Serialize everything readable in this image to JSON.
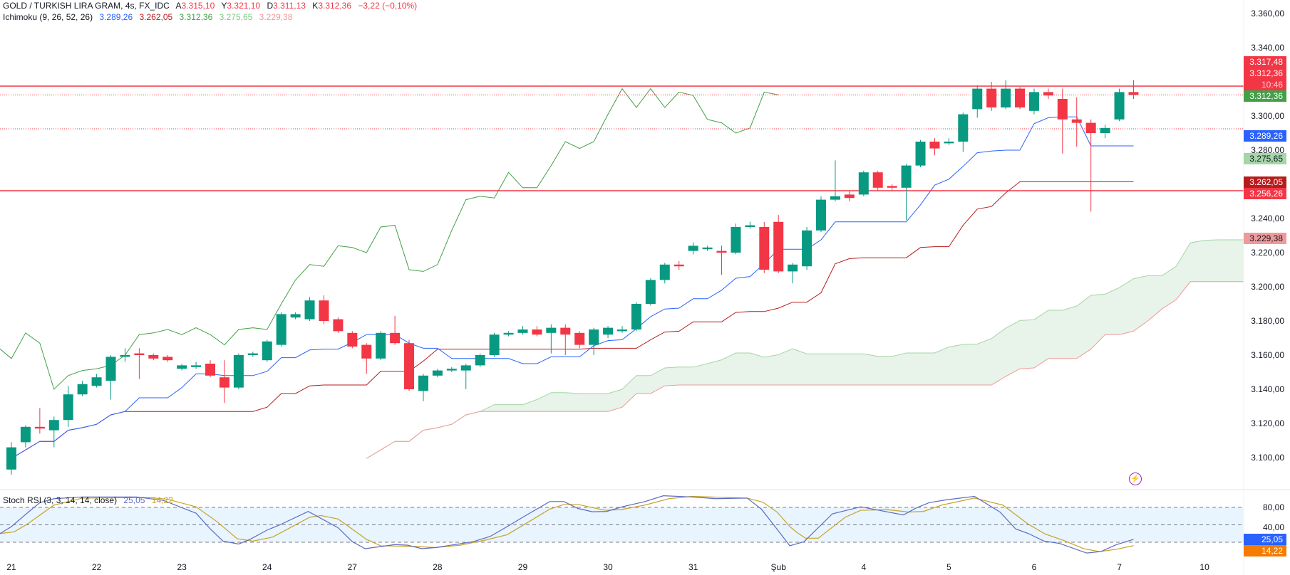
{
  "header": {
    "symbol": "GOLD / TURKISH LIRA GRAM, 4s, FX_IDC",
    "open_label": "A",
    "open": "3.315,10",
    "high_label": "Y",
    "high": "3.321,10",
    "low_label": "D",
    "low": "3.311,13",
    "close_label": "K",
    "close": "3.312,36",
    "change": "−3,22 (−0,10%)"
  },
  "ichimoku": {
    "label": "Ichimoku (9, 26, 52, 26)",
    "conversion": "3.289,26",
    "base": "3.262,05",
    "lagging": "3.312,36",
    "lead1": "3.275,65",
    "lead2": "3.229,38"
  },
  "stoch": {
    "label": "Stoch RSI (3, 3, 14, 14, close)",
    "k": "25,05",
    "d": "14,22",
    "axis": [
      "80,00",
      "40,00"
    ]
  },
  "price_axis": [
    "3.360,00",
    "3.340,00",
    "3.300,00",
    "3.280,00",
    "3.240,00",
    "3.220,00",
    "3.200,00",
    "3.180,00",
    "3.160,00",
    "3.140,00",
    "3.120,00",
    "3.100,00"
  ],
  "price_tags": {
    "line_high": "3.317,48",
    "last": "3.312,36",
    "countdown": "10:46",
    "lagging": "3.312,36",
    "conversion": "3.289,26",
    "lead1": "3.275,65",
    "base": "3.262,05",
    "line_low": "3.256,26",
    "lead2": "3.229,38"
  },
  "time_axis": [
    "21",
    "22",
    "23",
    "24",
    "27",
    "28",
    "29",
    "30",
    "31",
    "Şub",
    "4",
    "5",
    "6",
    "7",
    "10"
  ],
  "colors": {
    "up": "#089981",
    "down": "#f23645",
    "conversion": "#2962ff",
    "base": "#b71c1c",
    "lagging": "#43a047",
    "lead1": "#a5d6a7",
    "lead2": "#ef9a9a",
    "stoch_k": "#2962ff",
    "stoch_d": "#ff9800"
  },
  "chart_data": {
    "type": "candlestick",
    "timeframe": "4h",
    "horizontal_lines": [
      3317.48,
      3256.26
    ],
    "ylim": [
      3088,
      3368
    ],
    "ohlc": [
      [
        3093,
        3109,
        3090,
        3106
      ],
      [
        3109,
        3119,
        3106,
        3118
      ],
      [
        3118,
        3129,
        3114,
        3117
      ],
      [
        3116,
        3124,
        3106,
        3122
      ],
      [
        3122,
        3142,
        3118,
        3137
      ],
      [
        3137,
        3145,
        3136,
        3143
      ],
      [
        3142,
        3149,
        3141,
        3147
      ],
      [
        3145,
        3160,
        3134,
        3159
      ],
      [
        3159,
        3164,
        3156,
        3160
      ],
      [
        3161,
        3164,
        3146,
        3160
      ],
      [
        3160,
        3161,
        3157,
        3158
      ],
      [
        3159,
        3160,
        3156,
        3157
      ],
      [
        3152,
        3155,
        3151,
        3154
      ],
      [
        3153,
        3156,
        3152,
        3154
      ],
      [
        3155,
        3157,
        3147,
        3148
      ],
      [
        3147,
        3157,
        3132,
        3141
      ],
      [
        3141,
        3161,
        3140,
        3160
      ],
      [
        3160,
        3162,
        3159,
        3161
      ],
      [
        3157,
        3169,
        3156,
        3168
      ],
      [
        3166,
        3185,
        3165,
        3184
      ],
      [
        3182,
        3185,
        3181,
        3184
      ],
      [
        3181,
        3194,
        3180,
        3192
      ],
      [
        3192,
        3195,
        3178,
        3180
      ],
      [
        3181,
        3182,
        3173,
        3174
      ],
      [
        3173,
        3174,
        3164,
        3165
      ],
      [
        3166,
        3167,
        3149,
        3158
      ],
      [
        3158,
        3174,
        3157,
        3173
      ],
      [
        3173,
        3183,
        3166,
        3167
      ],
      [
        3167,
        3169,
        3139,
        3140
      ],
      [
        3139,
        3149,
        3133,
        3148
      ],
      [
        3148,
        3152,
        3147,
        3151
      ],
      [
        3151,
        3153,
        3150,
        3152
      ],
      [
        3151,
        3155,
        3140,
        3154
      ],
      [
        3154,
        3161,
        3153,
        3160
      ],
      [
        3160,
        3173,
        3159,
        3172
      ],
      [
        3172,
        3174,
        3171,
        3173
      ],
      [
        3173,
        3177,
        3172,
        3175
      ],
      [
        3175,
        3177,
        3171,
        3172
      ],
      [
        3173,
        3178,
        3161,
        3176
      ],
      [
        3176,
        3178,
        3160,
        3172
      ],
      [
        3173,
        3174,
        3164,
        3166
      ],
      [
        3166,
        3176,
        3160,
        3175
      ],
      [
        3172,
        3177,
        3170,
        3176
      ],
      [
        3174,
        3177,
        3173,
        3175
      ],
      [
        3175,
        3191,
        3174,
        3190
      ],
      [
        3190,
        3205,
        3189,
        3204
      ],
      [
        3204,
        3214,
        3202,
        3213
      ],
      [
        3213,
        3215,
        3210,
        3212
      ],
      [
        3221,
        3226,
        3219,
        3224
      ],
      [
        3222,
        3224,
        3221,
        3223
      ],
      [
        3221,
        3224,
        3207,
        3220
      ],
      [
        3220,
        3237,
        3219,
        3235
      ],
      [
        3235,
        3238,
        3234,
        3236
      ],
      [
        3235,
        3238,
        3208,
        3210
      ],
      [
        3238,
        3242,
        3208,
        3209
      ],
      [
        3209,
        3214,
        3202,
        3213
      ],
      [
        3212,
        3235,
        3210,
        3233
      ],
      [
        3233,
        3253,
        3232,
        3251
      ],
      [
        3251,
        3274,
        3250,
        3253
      ],
      [
        3254,
        3256,
        3250,
        3252
      ],
      [
        3254,
        3268,
        3253,
        3267
      ],
      [
        3267,
        3268,
        3256,
        3258
      ],
      [
        3259,
        3260,
        3256,
        3258
      ],
      [
        3258,
        3272,
        3239,
        3271
      ],
      [
        3271,
        3286,
        3270,
        3285
      ],
      [
        3285,
        3287,
        3277,
        3281
      ],
      [
        3284,
        3287,
        3283,
        3285
      ],
      [
        3285,
        3302,
        3279,
        3301
      ],
      [
        3304,
        3318,
        3299,
        3316
      ],
      [
        3316,
        3320,
        3303,
        3305
      ],
      [
        3305,
        3321,
        3304,
        3316
      ],
      [
        3316,
        3317,
        3304,
        3305
      ],
      [
        3303,
        3316,
        3301,
        3314
      ],
      [
        3314,
        3316,
        3310,
        3312
      ],
      [
        3310,
        3316,
        3278,
        3298
      ],
      [
        3298,
        3311,
        3282,
        3296
      ],
      [
        3296,
        3298,
        3244,
        3290
      ],
      [
        3290,
        3295,
        3287,
        3293
      ],
      [
        3298,
        3316,
        3297,
        3314
      ],
      [
        3314,
        3321,
        3310,
        3312.36
      ]
    ],
    "stoch_rsi": {
      "ylim": [
        0,
        100
      ],
      "bands": [
        80,
        50,
        20
      ],
      "k": [
        [
          -0.8,
          35
        ],
        [
          0,
          47
        ],
        [
          1.1,
          70
        ],
        [
          2,
          88
        ],
        [
          3,
          95
        ],
        [
          5,
          98
        ],
        [
          8.8,
          98
        ],
        [
          10.7,
          92
        ],
        [
          13,
          70
        ],
        [
          14,
          43
        ],
        [
          14.9,
          22
        ],
        [
          16,
          17
        ],
        [
          16.8,
          25
        ],
        [
          18,
          41
        ],
        [
          18.9,
          50
        ],
        [
          20.9,
          73
        ],
        [
          23,
          45
        ],
        [
          24,
          21
        ],
        [
          24.9,
          9
        ],
        [
          27,
          16
        ],
        [
          27.9,
          15
        ],
        [
          28.9,
          9
        ],
        [
          29.9,
          11
        ],
        [
          32.5,
          21
        ],
        [
          33.7,
          30
        ],
        [
          34.9,
          47
        ],
        [
          36,
          63
        ],
        [
          37.9,
          90
        ],
        [
          38.9,
          90
        ],
        [
          39.9,
          78
        ],
        [
          40.9,
          72.5
        ],
        [
          41.9,
          73
        ],
        [
          43,
          81
        ],
        [
          44.6,
          90
        ],
        [
          45.9,
          100
        ],
        [
          47.9,
          98
        ],
        [
          49.6,
          95
        ],
        [
          51.8,
          96
        ],
        [
          52.8,
          77
        ],
        [
          53.7,
          49
        ],
        [
          54.8,
          14
        ],
        [
          55.8,
          21
        ],
        [
          57.8,
          69
        ],
        [
          59.8,
          81
        ],
        [
          62.8,
          67
        ],
        [
          63.7,
          79
        ],
        [
          64.6,
          88
        ],
        [
          65.8,
          93
        ],
        [
          67.8,
          99
        ],
        [
          69.6,
          72
        ],
        [
          70.7,
          43
        ],
        [
          71.6,
          35
        ],
        [
          72.7,
          22
        ],
        [
          73.8,
          18
        ],
        [
          75.7,
          1.5
        ],
        [
          76.7,
          4
        ],
        [
          77.8,
          16
        ],
        [
          79,
          25.05
        ]
      ],
      "d": [
        [
          -0.8,
          35
        ],
        [
          0.2,
          38
        ],
        [
          1.1,
          51
        ],
        [
          3,
          84
        ],
        [
          5,
          96
        ],
        [
          9.7,
          97
        ],
        [
          11,
          94
        ],
        [
          13,
          81
        ],
        [
          14.5,
          55
        ],
        [
          15.9,
          26
        ],
        [
          17,
          22
        ],
        [
          18.4,
          29
        ],
        [
          21,
          63
        ],
        [
          21.8,
          66
        ],
        [
          23,
          60
        ],
        [
          25,
          25
        ],
        [
          26,
          14
        ],
        [
          28.2,
          13
        ],
        [
          29.9,
          11
        ],
        [
          31.6,
          15
        ],
        [
          33.4,
          24
        ],
        [
          34.9,
          33
        ],
        [
          36,
          49
        ],
        [
          37.9,
          77
        ],
        [
          38.9,
          85
        ],
        [
          39.9,
          85
        ],
        [
          41.8,
          75
        ],
        [
          42.9,
          76
        ],
        [
          44.6,
          84
        ],
        [
          46.3,
          95
        ],
        [
          47.9,
          99
        ],
        [
          51.8,
          96
        ],
        [
          52.9,
          89
        ],
        [
          53.9,
          72
        ],
        [
          54.8,
          47
        ],
        [
          55.3,
          37
        ],
        [
          55.9,
          27
        ],
        [
          56.8,
          27
        ],
        [
          58.7,
          63
        ],
        [
          59.8,
          75
        ],
        [
          61.7,
          76
        ],
        [
          63.2,
          72
        ],
        [
          64.2,
          73
        ],
        [
          65.5,
          84
        ],
        [
          67.8,
          96
        ],
        [
          69.8,
          84
        ],
        [
          71.6,
          51
        ],
        [
          72.8,
          34
        ],
        [
          74.1,
          23
        ],
        [
          75.5,
          9
        ],
        [
          76.6,
          4
        ],
        [
          77.8,
          8
        ],
        [
          79,
          14.22
        ]
      ]
    }
  }
}
